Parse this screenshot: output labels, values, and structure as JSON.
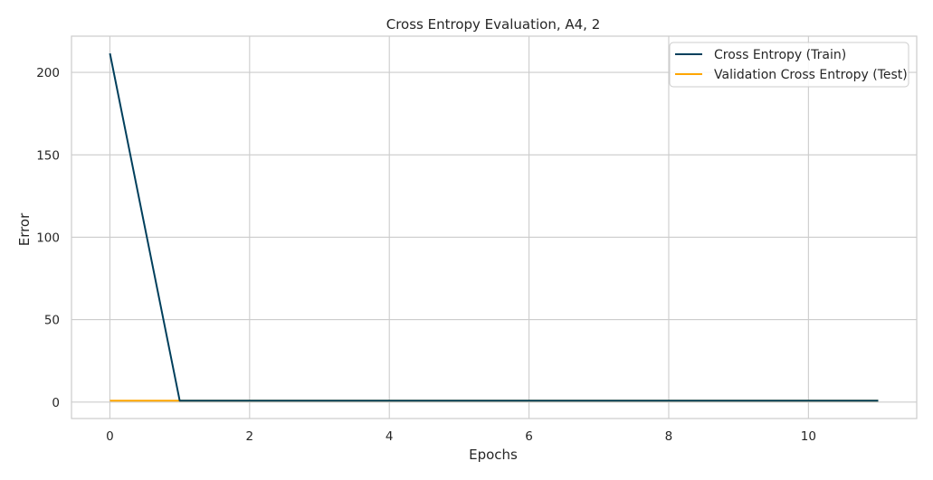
{
  "chart_data": {
    "type": "line",
    "title": "Cross Entropy Evaluation, A4, 2",
    "xlabel": "Epochs",
    "ylabel": "Error",
    "xlim": [
      -0.55,
      11.55
    ],
    "ylim": [
      -10,
      222
    ],
    "xticks": [
      0,
      2,
      4,
      6,
      8,
      10
    ],
    "yticks": [
      0,
      50,
      100,
      150,
      200
    ],
    "grid": true,
    "legend_position": "top-right",
    "series": [
      {
        "name": "Cross Entropy (Train)",
        "color": "#003f5c",
        "x": [
          0,
          1,
          2,
          3,
          4,
          5,
          6,
          7,
          8,
          9,
          10,
          11
        ],
        "y": [
          211.5,
          0.8,
          0.8,
          0.8,
          0.8,
          0.8,
          0.8,
          0.8,
          0.8,
          0.8,
          0.8,
          0.8
        ]
      },
      {
        "name": "Validation Cross Entropy (Test)",
        "color": "#ffa600",
        "x": [
          0,
          1,
          2,
          3,
          4,
          5,
          6,
          7,
          8,
          9,
          10,
          11
        ],
        "y": [
          0.8,
          0.8,
          0.8,
          0.8,
          0.8,
          0.8,
          0.8,
          0.8,
          0.8,
          0.8,
          0.8,
          0.8
        ]
      }
    ]
  }
}
